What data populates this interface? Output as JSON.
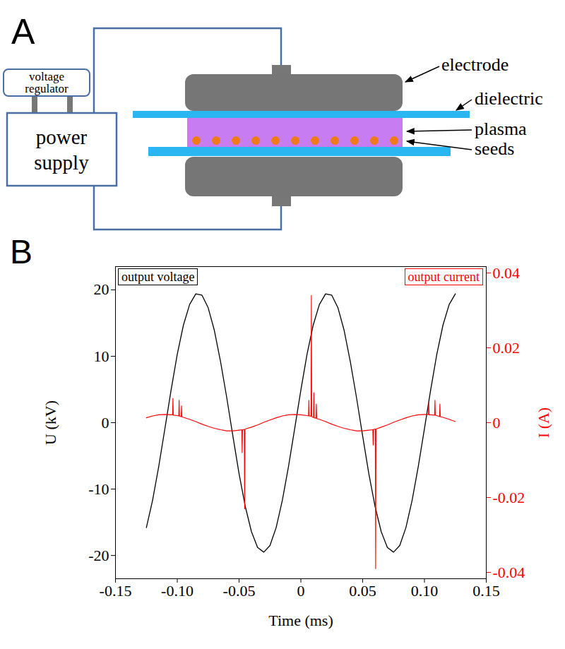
{
  "diagram": {
    "panel_label": "A",
    "power_supply": "power supply",
    "voltage_regulator": "voltage regulator",
    "labels": {
      "electrode": "electrode",
      "dielectric": "dielectric",
      "plasma": "plasma",
      "seeds": "seeds"
    }
  },
  "chart_data": {
    "panel_label": "B",
    "type": "line",
    "xlabel": "Time (ms)",
    "ylabel": "U (kV)",
    "y2label": "I (A)",
    "xlim": [
      -0.15,
      0.15
    ],
    "xticks": [
      -0.15,
      {
        "value": -0.1,
        "label": "-0.10"
      },
      -0.05,
      0,
      0.05,
      {
        "value": 0.1,
        "label": "0.10"
      },
      0.15
    ],
    "ylim": [
      -23.5,
      23.5
    ],
    "yticks": [
      -20,
      -10,
      0,
      10,
      20
    ],
    "y2lim": [
      -0.0417,
      0.0417
    ],
    "y2ticks": [
      -0.04,
      -0.02,
      0,
      0.02,
      0.04
    ],
    "series": [
      {
        "name": "output voltage",
        "color": "#000000",
        "axis": "y",
        "x": [
          -0.125,
          -0.12,
          -0.115,
          -0.11,
          -0.105,
          -0.1,
          -0.095,
          -0.09,
          -0.085,
          -0.08,
          -0.075,
          -0.07,
          -0.065,
          -0.06,
          -0.055,
          -0.05,
          -0.045,
          -0.04,
          -0.035,
          -0.03,
          -0.025,
          -0.02,
          -0.015,
          -0.01,
          -0.005,
          0,
          0.005,
          0.01,
          0.015,
          0.02,
          0.025,
          0.03,
          0.035,
          0.04,
          0.045,
          0.05,
          0.055,
          0.06,
          0.065,
          0.07,
          0.075,
          0.08,
          0.085,
          0.09,
          0.095,
          0.1,
          0.105,
          0.11,
          0.115,
          0.12,
          0.125
        ],
        "values": [
          -15.8,
          -11.7,
          -6.6,
          -0.9,
          4.9,
          10.3,
          14.7,
          17.8,
          19.4,
          19.2,
          17.3,
          13.9,
          9.2,
          3.8,
          -2.0,
          -7.7,
          -12.6,
          -16.4,
          -18.8,
          -19.5,
          -18.5,
          -15.8,
          -11.7,
          -6.6,
          -0.9,
          4.9,
          10.3,
          14.7,
          17.8,
          19.4,
          19.2,
          17.3,
          13.9,
          9.2,
          3.8,
          -2.0,
          -7.7,
          -12.6,
          -16.4,
          -18.8,
          -19.5,
          -18.5,
          -15.8,
          -11.7,
          -6.6,
          -0.9,
          4.9,
          10.3,
          14.7,
          17.8,
          19.4
        ]
      },
      {
        "name": "output current",
        "color": "#ff0000",
        "axis": "y2",
        "x": [
          -0.125,
          -0.12,
          -0.115,
          -0.11,
          -0.105,
          -0.1038,
          -0.1035,
          -0.1032,
          -0.1,
          -0.0988,
          -0.0985,
          -0.0982,
          -0.0968,
          -0.0965,
          -0.0962,
          -0.095,
          -0.09,
          -0.085,
          -0.08,
          -0.075,
          -0.07,
          -0.065,
          -0.06,
          -0.055,
          -0.05,
          -0.0478,
          -0.0475,
          -0.0472,
          -0.0458,
          -0.0455,
          -0.0452,
          -0.045,
          -0.04,
          -0.035,
          -0.03,
          -0.025,
          -0.02,
          -0.015,
          -0.01,
          -0.005,
          0,
          0.005,
          0.0062,
          0.0065,
          0.0068,
          0.0082,
          0.0085,
          0.0088,
          0.01,
          0.0102,
          0.0105,
          0.0108,
          0.0122,
          0.0125,
          0.0128,
          0.015,
          0.02,
          0.025,
          0.03,
          0.035,
          0.04,
          0.045,
          0.05,
          0.055,
          0.0582,
          0.0585,
          0.0588,
          0.06,
          0.0602,
          0.0605,
          0.0608,
          0.065,
          0.07,
          0.075,
          0.08,
          0.085,
          0.09,
          0.095,
          0.1,
          0.1032,
          0.1035,
          0.1038,
          0.105,
          0.1082,
          0.1085,
          0.1088,
          0.11,
          0.1122,
          0.1125,
          0.1128,
          0.115,
          0.12,
          0.125
        ],
        "values": [
          0.0013,
          0.0018,
          0.0021,
          0.0022,
          0.0021,
          0.0021,
          0.0065,
          0.002,
          0.0019,
          0.0018,
          0.006,
          0.0017,
          0.0016,
          0.0045,
          0.0015,
          0.0014,
          0.0009,
          0.0003,
          -0.0004,
          -0.001,
          -0.0015,
          -0.0019,
          -0.0022,
          -0.0022,
          -0.002,
          -0.0019,
          -0.008,
          -0.0019,
          -0.0018,
          -0.023,
          -0.0018,
          -0.0017,
          -0.0012,
          -0.0006,
          0.0001,
          0.0007,
          0.0013,
          0.0018,
          0.0021,
          0.0022,
          0.0021,
          0.0019,
          0.0018,
          0.006,
          0.0018,
          0.0017,
          0.034,
          0.0016,
          0.0014,
          0.0014,
          0.008,
          0.0013,
          0.0012,
          0.005,
          0.0011,
          0.0009,
          0.0003,
          -0.0004,
          -0.001,
          -0.0015,
          -0.0019,
          -0.0022,
          -0.0022,
          -0.002,
          -0.0019,
          -0.006,
          -0.0018,
          -0.0017,
          -0.0017,
          -0.039,
          -0.0017,
          -0.0012,
          -0.0006,
          0.0001,
          0.0007,
          0.0013,
          0.0018,
          0.0021,
          0.0022,
          0.0022,
          0.0055,
          0.0021,
          0.0021,
          0.002,
          0.006,
          0.002,
          0.0019,
          0.0016,
          0.005,
          0.0016,
          0.0014,
          0.0009,
          0.0003
        ]
      }
    ]
  }
}
